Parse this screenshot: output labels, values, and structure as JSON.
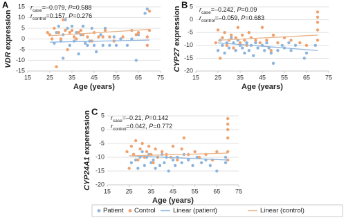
{
  "chart_data": [
    {
      "type": "scatter",
      "panel": "A",
      "annotation": [
        [
          "r",
          "case",
          "=–0.079, ",
          "P",
          "=0.588"
        ],
        [
          "r",
          "control",
          "=0.157, ",
          "P",
          "=0.276"
        ]
      ],
      "x_label": "Age (years)",
      "y_label": [
        "VDR",
        " expression"
      ],
      "xlim": [
        15,
        75
      ],
      "xticks": [
        15,
        25,
        35,
        45,
        55,
        65,
        75
      ],
      "ylim": [
        -15,
        15
      ],
      "yticks": [
        -15,
        -10,
        -5,
        0,
        5,
        10,
        15
      ],
      "grid": true,
      "series": [
        {
          "name": "Patient",
          "type": "scatter",
          "color": "#8db4dc",
          "x": [
            27,
            28,
            29,
            30,
            31,
            31,
            32,
            33,
            34,
            35,
            36,
            37,
            38,
            39,
            40,
            41,
            42,
            43,
            44,
            45,
            46,
            48,
            49,
            50,
            52,
            54,
            55,
            57,
            60,
            62,
            64,
            65,
            68,
            69
          ],
          "values": [
            -2,
            3,
            6,
            -1,
            2,
            -9,
            9,
            5,
            -3,
            6,
            -1,
            3,
            -7,
            2,
            6,
            -2,
            -3,
            -1,
            5,
            -3,
            -6,
            2,
            -3,
            5,
            -3,
            1,
            -3,
            0,
            -3,
            0,
            -10,
            2,
            12,
            14
          ]
        },
        {
          "name": "Control",
          "type": "scatter",
          "color": "#f0a06b",
          "x": [
            24,
            25,
            26,
            27,
            28,
            29,
            30,
            31,
            32,
            33,
            34,
            35,
            36,
            37,
            38,
            39,
            40,
            42,
            44,
            45,
            47,
            49,
            50,
            52,
            54,
            58,
            62,
            64,
            65,
            69,
            69,
            70,
            70
          ],
          "values": [
            3,
            2,
            0,
            5,
            -13,
            3,
            0,
            9,
            4,
            -5,
            3,
            4,
            1,
            0,
            3,
            4,
            2,
            1,
            -1,
            3,
            1,
            1,
            4,
            1,
            -1,
            1,
            4,
            2,
            3,
            -3,
            1,
            4,
            13
          ]
        },
        {
          "name": "Linear (patient)",
          "type": "line",
          "color": "#8db4dc",
          "x": [
            25,
            70
          ],
          "values": [
            -1.5,
            -0.5
          ]
        },
        {
          "name": "Linear (control)",
          "type": "line",
          "color": "#e8b48a",
          "x": [
            25,
            70
          ],
          "values": [
            1.5,
            4.5
          ]
        }
      ]
    },
    {
      "type": "scatter",
      "panel": "B",
      "annotation": [
        [
          "r",
          "case",
          "=–0.242, ",
          "P",
          "=0.09"
        ],
        [
          "r",
          "control",
          "=–0.059, ",
          "P",
          "=0.683"
        ]
      ],
      "x_label": "Age (years)",
      "y_label": [
        "CYP27",
        " expression"
      ],
      "xlim": [
        15,
        75
      ],
      "xticks": [
        15,
        25,
        35,
        45,
        55,
        65,
        75
      ],
      "ylim": [
        -20,
        5
      ],
      "yticks": [
        -20,
        -15,
        -10,
        -5,
        0,
        5
      ],
      "grid": true,
      "series": [
        {
          "type": "scatter",
          "color": "#8db4dc",
          "x": [
            25,
            26,
            27,
            28,
            29,
            30,
            31,
            32,
            33,
            34,
            35,
            36,
            37,
            38,
            39,
            40,
            41,
            42,
            43,
            45,
            46,
            47,
            48,
            49,
            50,
            52,
            54,
            55,
            57,
            58,
            60,
            64,
            65,
            69
          ],
          "values": [
            -12,
            -8,
            -10,
            -13,
            -9,
            -11,
            -7,
            -9,
            -12,
            -8,
            -10,
            -11,
            -13,
            -9,
            -12,
            -10,
            -14,
            -9,
            -11,
            -10,
            -12,
            -9,
            -11,
            -13,
            -17,
            -12,
            -10,
            -11,
            -9,
            -12,
            -10,
            -15,
            -13,
            -10
          ]
        },
        {
          "type": "scatter",
          "color": "#f0a06b",
          "x": [
            24,
            25,
            26,
            27,
            28,
            29,
            30,
            31,
            32,
            33,
            34,
            35,
            36,
            37,
            38,
            39,
            40,
            42,
            44,
            45,
            47,
            49,
            50,
            52,
            55,
            58,
            62,
            65,
            70,
            70,
            70,
            70,
            70
          ],
          "values": [
            -9,
            -4,
            -15,
            -7,
            -5,
            -10,
            -8,
            -6,
            -11,
            -7,
            -3,
            -9,
            -6,
            -8,
            -10,
            -5,
            -7,
            -8,
            -9,
            -3,
            -8,
            -12,
            -6,
            -9,
            -7,
            -8,
            -9,
            -10,
            -8,
            -4,
            -1,
            1,
            3
          ]
        },
        {
          "type": "line",
          "color": "#8db4dc",
          "x": [
            25,
            70
          ],
          "values": [
            -9,
            -12
          ]
        },
        {
          "type": "line",
          "color": "#e8b48a",
          "x": [
            25,
            70
          ],
          "values": [
            -8,
            -6
          ]
        }
      ]
    },
    {
      "type": "scatter",
      "panel": "C",
      "annotation": [
        [
          "r",
          "case",
          "=–0.21, ",
          "P",
          "=0.142"
        ],
        [
          "r",
          "control",
          "=0.042, ",
          "P",
          "=0.772"
        ]
      ],
      "x_label": "Age (years)",
      "y_label": [
        "CYP24A1",
        " experession"
      ],
      "xlim": [
        15,
        75
      ],
      "xticks": [
        15,
        25,
        35,
        45,
        55,
        65,
        75
      ],
      "ylim": [
        -20,
        5
      ],
      "yticks": [
        -20,
        -15,
        -10,
        -5,
        0,
        5
      ],
      "grid": true,
      "series": [
        {
          "type": "scatter",
          "color": "#8db4dc",
          "x": [
            26,
            27,
            28,
            29,
            30,
            31,
            32,
            33,
            34,
            35,
            36,
            37,
            38,
            39,
            40,
            41,
            42,
            43,
            45,
            46,
            47,
            49,
            50,
            52,
            54,
            56,
            58,
            60,
            62,
            65,
            69,
            69
          ],
          "values": [
            -12,
            -9,
            -11,
            -14,
            -10,
            -8,
            -13,
            -10,
            -9,
            -12,
            -11,
            -14,
            -10,
            -13,
            -9,
            -12,
            -10,
            -15,
            -11,
            -13,
            -10,
            -12,
            -9,
            -11,
            -13,
            -10,
            -12,
            -11,
            -13,
            -15,
            -12,
            -10
          ]
        },
        {
          "type": "scatter",
          "color": "#f0a06b",
          "x": [
            24,
            25,
            26,
            27,
            28,
            29,
            30,
            31,
            32,
            33,
            34,
            35,
            36,
            37,
            38,
            40,
            42,
            44,
            45,
            47,
            49,
            50,
            52,
            55,
            57,
            60,
            63,
            65,
            70,
            70,
            70,
            70,
            70,
            70
          ],
          "values": [
            -8,
            -14,
            -6,
            -9,
            -4,
            -11,
            -7,
            -5,
            -10,
            -8,
            -6,
            -9,
            -12,
            -7,
            -10,
            -8,
            -9,
            -10,
            -6,
            -11,
            -7,
            -3,
            -9,
            -8,
            -10,
            -9,
            -11,
            -8,
            -11,
            -8,
            -3,
            0,
            2,
            4
          ]
        },
        {
          "type": "line",
          "color": "#8db4dc",
          "x": [
            25,
            70
          ],
          "values": [
            -9.5,
            -11
          ]
        },
        {
          "type": "line",
          "color": "#e8b48a",
          "x": [
            25,
            70
          ],
          "values": [
            -9.5,
            -8.5
          ]
        }
      ]
    }
  ]
}
